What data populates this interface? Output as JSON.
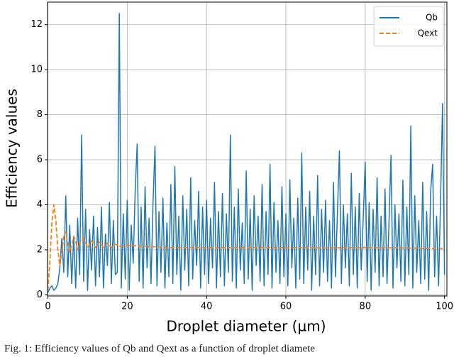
{
  "chart_data": {
    "type": "line",
    "xlabel": "Droplet diameter (µm)",
    "ylabel": "Efficiency values",
    "caption": "Fig. 1: Efficiency values of Qb and Qext as a function of droplet diamete",
    "xlim": [
      -0.1,
      100.6
    ],
    "ylim": [
      -0.05,
      13
    ],
    "xticks": [
      0,
      20,
      40,
      60,
      80,
      100
    ],
    "yticks": [
      0,
      2,
      4,
      6,
      8,
      10,
      12
    ],
    "grid": true,
    "legend": "upper right",
    "series": [
      {
        "name": "Qb",
        "color": "#1f77b4",
        "style": "solid",
        "x": [
          0,
          0.5,
          1,
          1.5,
          2,
          2.5,
          3,
          3.5,
          4,
          4.5,
          5,
          5.5,
          6,
          6.5,
          7,
          7.5,
          8,
          8.5,
          9,
          9.5,
          10,
          10.5,
          11,
          11.5,
          12,
          12.5,
          13,
          13.5,
          14,
          14.5,
          15,
          15.5,
          16,
          16.5,
          17,
          17.5,
          18,
          18.5,
          19,
          19.5,
          20,
          20.5,
          21,
          21.5,
          22,
          22.5,
          23,
          23.5,
          24,
          24.5,
          25,
          25.5,
          26,
          26.5,
          27,
          27.5,
          28,
          28.5,
          29,
          29.5,
          30,
          30.5,
          31,
          31.5,
          32,
          32.5,
          33,
          33.5,
          34,
          34.5,
          35,
          35.5,
          36,
          36.5,
          37,
          37.5,
          38,
          38.5,
          39,
          39.5,
          40,
          40.5,
          41,
          41.5,
          42,
          42.5,
          43,
          43.5,
          44,
          44.5,
          45,
          45.5,
          46,
          46.5,
          47,
          47.5,
          48,
          48.5,
          49,
          49.5,
          50,
          50.5,
          51,
          51.5,
          52,
          52.5,
          53,
          53.5,
          54,
          54.5,
          55,
          55.5,
          56,
          56.5,
          57,
          57.5,
          58,
          58.5,
          59,
          59.5,
          60,
          60.5,
          61,
          61.5,
          62,
          62.5,
          63,
          63.5,
          64,
          64.5,
          65,
          65.5,
          66,
          66.5,
          67,
          67.5,
          68,
          68.5,
          69,
          69.5,
          70,
          70.5,
          71,
          71.5,
          72,
          72.5,
          73,
          73.5,
          74,
          74.5,
          75,
          75.5,
          76,
          76.5,
          77,
          77.5,
          78,
          78.5,
          79,
          79.5,
          80,
          80.5,
          81,
          81.5,
          82,
          82.5,
          83,
          83.5,
          84,
          84.5,
          85,
          85.5,
          86,
          86.5,
          87,
          87.5,
          88,
          88.5,
          89,
          89.5,
          90,
          90.5,
          91,
          91.5,
          92,
          92.5,
          93,
          93.5,
          94,
          94.5,
          95,
          95.5,
          96,
          96.5,
          97,
          97.5,
          98,
          98.5,
          99,
          99.5,
          100
        ],
        "values": [
          0.1,
          0.3,
          0.4,
          0.2,
          0.3,
          0.5,
          1.2,
          2.5,
          1.0,
          4.4,
          0.8,
          3.1,
          0.5,
          2.6,
          0.3,
          3.4,
          0.9,
          7.1,
          0.6,
          3.8,
          0.2,
          2.9,
          1.1,
          3.5,
          0.4,
          3.0,
          0.8,
          3.9,
          0.3,
          2.7,
          1.3,
          4.1,
          0.5,
          3.3,
          0.9,
          1.0,
          12.5,
          0.3,
          3.6,
          0.7,
          4.2,
          0.2,
          3.1,
          1.4,
          4.6,
          6.7,
          0.6,
          3.9,
          0.3,
          4.8,
          1.2,
          3.4,
          0.5,
          4.1,
          6.6,
          0.4,
          3.7,
          1.0,
          4.3,
          0.3,
          3.2,
          0.8,
          4.9,
          0.5,
          5.7,
          0.9,
          3.5,
          0.2,
          4.4,
          1.1,
          3.8,
          0.4,
          5.2,
          0.7,
          3.3,
          1.3,
          4.6,
          0.3,
          3.9,
          0.9,
          4.2,
          0.5,
          3.4,
          1.2,
          5.0,
          0.3,
          3.7,
          0.8,
          4.5,
          0.4,
          3.6,
          1.0,
          7.1,
          0.6,
          3.9,
          0.3,
          4.7,
          1.1,
          3.2,
          0.5,
          5.5,
          0.7,
          3.8,
          0.2,
          4.4,
          1.3,
          3.5,
          0.6,
          4.9,
          0.4,
          3.7,
          0.9,
          5.8,
          0.3,
          4.1,
          1.0,
          3.3,
          0.5,
          4.8,
          0.8,
          3.6,
          0.4,
          5.1,
          1.2,
          3.4,
          0.3,
          4.3,
          0.7,
          6.3,
          0.5,
          3.9,
          1.1,
          4.6,
          0.2,
          3.5,
          0.9,
          5.3,
          0.4,
          3.8,
          1.0,
          4.2,
          0.6,
          3.3,
          0.3,
          5.0,
          0.8,
          3.7,
          6.4,
          0.5,
          4.0,
          1.2,
          3.6,
          0.4,
          5.4,
          0.9,
          3.9,
          0.3,
          4.5,
          1.1,
          3.4,
          5.9,
          0.6,
          4.1,
          0.2,
          3.8,
          1.0,
          5.2,
          0.4,
          3.5,
          0.8,
          4.7,
          0.5,
          3.2,
          6.2,
          0.3,
          4.0,
          1.2,
          3.6,
          0.6,
          5.1,
          0.4,
          3.9,
          0.9,
          7.5,
          0.3,
          4.4,
          1.0,
          3.3,
          0.5,
          5.0,
          0.7,
          3.7,
          0.2,
          4.6,
          5.8,
          0.8,
          3.5,
          0.4,
          4.2,
          8.5,
          0.9
        ]
      },
      {
        "name": "Qext",
        "color": "#ff7f0e",
        "style": "dashed",
        "x": [
          0,
          0.5,
          1,
          1.5,
          2,
          2.5,
          3,
          3.5,
          4,
          4.5,
          5,
          5.5,
          6,
          6.5,
          7,
          7.5,
          8,
          9,
          10,
          11,
          12,
          13,
          14,
          15,
          16,
          17,
          18,
          20,
          25,
          30,
          40,
          50,
          60,
          70,
          80,
          90,
          100
        ],
        "values": [
          0.2,
          1.5,
          3.2,
          4.0,
          3.3,
          2.0,
          1.3,
          1.9,
          2.6,
          2.8,
          2.3,
          1.9,
          2.2,
          2.6,
          2.4,
          2.0,
          2.3,
          2.5,
          2.1,
          2.4,
          2.1,
          2.35,
          2.1,
          2.3,
          2.1,
          2.25,
          2.15,
          2.2,
          2.15,
          2.1,
          2.1,
          2.1,
          2.1,
          2.08,
          2.1,
          2.08,
          2.05
        ]
      }
    ]
  }
}
